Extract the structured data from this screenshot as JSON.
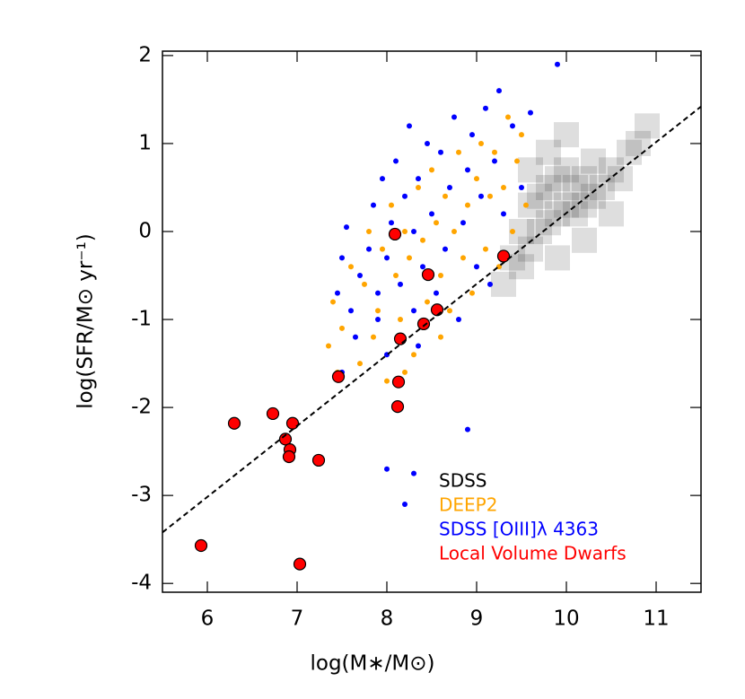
{
  "chart_data": {
    "type": "scatter",
    "xlabel": "log(M∗/M⊙)",
    "ylabel": "log(SFR/M⊙ yr⁻¹)",
    "xlim": [
      5.5,
      11.5
    ],
    "xticks": [
      6,
      7,
      8,
      9,
      10,
      11
    ],
    "ylim": [
      -4.1,
      2.05
    ],
    "yticks": [
      -4,
      -3,
      -2,
      -1,
      0,
      1,
      2
    ],
    "fit_line": {
      "x": [
        5.5,
        11.5
      ],
      "y": [
        -3.42,
        1.42
      ]
    },
    "series": [
      {
        "name": "SDSS",
        "color": "#000000",
        "marker": "square",
        "x": [
          9.3,
          9.4,
          9.5,
          9.5,
          9.6,
          9.6,
          9.7,
          9.7,
          9.8,
          9.8,
          9.9,
          9.9,
          10.0,
          10.0,
          10.1,
          10.1,
          10.2,
          10.2,
          10.3,
          10.3,
          10.4,
          10.5,
          10.6,
          10.7,
          10.8,
          10.9,
          9.9,
          10.2,
          10.5,
          9.8,
          10.0,
          9.6
        ],
        "y": [
          -0.6,
          -0.3,
          -0.4,
          0.0,
          -0.2,
          0.3,
          0.0,
          0.4,
          0.1,
          0.5,
          0.2,
          0.6,
          0.3,
          0.7,
          0.2,
          0.5,
          0.3,
          0.6,
          0.4,
          0.8,
          0.5,
          0.7,
          0.6,
          0.9,
          1.0,
          1.2,
          -0.3,
          -0.1,
          0.2,
          0.9,
          1.1,
          0.7
        ]
      },
      {
        "name": "DEEP2",
        "color": "#ffa500",
        "marker": "dot",
        "x": [
          7.35,
          7.4,
          7.5,
          7.6,
          7.7,
          7.75,
          7.8,
          7.9,
          7.95,
          8.0,
          8.05,
          8.1,
          8.15,
          8.2,
          8.25,
          8.3,
          8.35,
          8.4,
          8.45,
          8.5,
          8.55,
          8.6,
          8.65,
          8.7,
          8.75,
          8.8,
          8.85,
          8.9,
          8.95,
          9.0,
          9.05,
          9.1,
          9.15,
          9.2,
          9.25,
          9.3,
          9.35,
          9.4,
          9.45,
          9.5,
          9.55,
          7.45,
          7.85,
          8.2,
          8.6
        ],
        "y": [
          -1.3,
          -0.8,
          -1.1,
          -0.4,
          -1.5,
          -0.6,
          0.0,
          -0.9,
          -0.2,
          -1.7,
          0.3,
          -0.5,
          -1.0,
          0.0,
          -0.3,
          -1.4,
          0.5,
          -0.1,
          -0.8,
          0.7,
          0.1,
          -0.5,
          0.4,
          -0.9,
          0.0,
          0.9,
          -0.3,
          0.3,
          -0.7,
          0.6,
          1.0,
          -0.2,
          0.4,
          0.9,
          -0.4,
          0.5,
          1.3,
          0.0,
          0.8,
          1.1,
          0.3,
          -1.6,
          -1.2,
          -1.6,
          -1.2
        ]
      },
      {
        "name": "SDSS [OIII]λ 4363",
        "color": "#0000ff",
        "marker": "dot",
        "x": [
          7.45,
          7.5,
          7.6,
          7.55,
          7.7,
          7.8,
          7.85,
          7.9,
          7.95,
          8.0,
          8.05,
          8.1,
          8.15,
          8.2,
          8.25,
          8.3,
          8.3,
          8.35,
          8.4,
          8.45,
          8.5,
          8.55,
          8.6,
          8.65,
          8.7,
          8.75,
          8.8,
          8.85,
          8.9,
          8.95,
          9.0,
          9.05,
          9.1,
          9.15,
          9.2,
          9.25,
          9.3,
          9.4,
          9.5,
          9.6,
          7.65,
          8.0,
          8.35,
          7.5,
          8.0,
          8.3,
          8.2,
          8.9,
          9.9,
          7.9
        ],
        "y": [
          -0.7,
          -0.3,
          -0.9,
          0.05,
          -0.5,
          -0.2,
          0.3,
          -0.7,
          0.6,
          -0.3,
          0.1,
          0.8,
          -0.6,
          0.4,
          1.2,
          -0.9,
          0.0,
          0.6,
          -0.4,
          1.0,
          0.2,
          -0.7,
          0.9,
          -0.2,
          0.5,
          1.3,
          -1.0,
          0.1,
          0.7,
          1.1,
          -0.4,
          0.4,
          1.4,
          -0.6,
          0.8,
          1.6,
          0.2,
          1.2,
          0.5,
          1.35,
          -1.2,
          -1.4,
          -1.3,
          -1.6,
          -2.7,
          -2.75,
          -3.1,
          -2.25,
          1.9,
          -1.0
        ]
      },
      {
        "name": "Local Volume Dwarfs",
        "color": "#ff0000",
        "marker": "circle",
        "x": [
          8.09,
          8.46,
          8.56,
          8.41,
          8.15,
          9.3,
          7.46,
          8.13,
          8.12,
          6.3,
          6.73,
          6.95,
          6.87,
          6.92,
          6.91,
          7.24,
          5.93,
          7.03
        ],
        "y": [
          -0.03,
          -0.49,
          -0.89,
          -1.05,
          -1.22,
          -0.28,
          -1.65,
          -1.71,
          -1.99,
          -2.18,
          -2.07,
          -2.18,
          -2.36,
          -2.48,
          -2.56,
          -2.6,
          -3.57,
          -3.78
        ]
      }
    ]
  }
}
